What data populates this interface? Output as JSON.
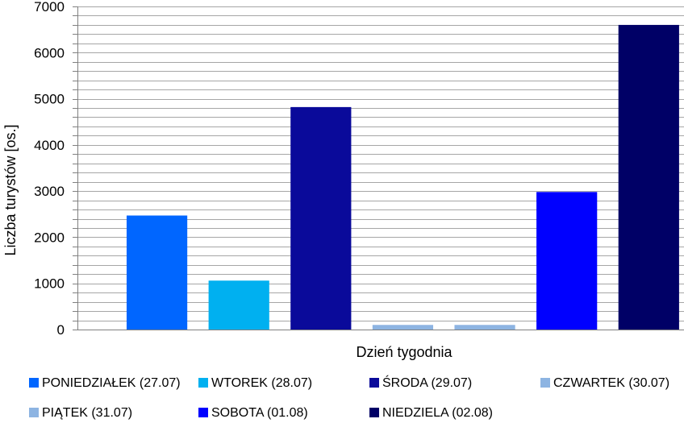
{
  "chart_data": {
    "type": "bar",
    "title": "",
    "xlabel": "Dzień tygodnia",
    "ylabel": "Liczba turystów [os.]",
    "ylim": [
      0,
      7000
    ],
    "yticks": [
      "0",
      "1000",
      "2000",
      "3000",
      "4000",
      "5000",
      "6000",
      "7000"
    ],
    "grid": true,
    "legend_position": "bottom",
    "series": [
      {
        "name": "PONIEDZIAŁEK (27.07)",
        "value": 2470,
        "color": "#0066ff"
      },
      {
        "name": "WTOREK (28.07)",
        "value": 1060,
        "color": "#00b0f0"
      },
      {
        "name": "ŚRODA (29.07)",
        "value": 4820,
        "color": "#0a0a9a"
      },
      {
        "name": "CZWARTEK (30.07)",
        "value": 100,
        "color": "#8db4e2"
      },
      {
        "name": "PIĄTEK (31.07)",
        "value": 100,
        "color": "#8db4e2"
      },
      {
        "name": "SOBOTA (01.08)",
        "value": 2980,
        "color": "#0000ff"
      },
      {
        "name": "NIEDZIELA (02.08)",
        "value": 6600,
        "color": "#000066"
      }
    ]
  }
}
